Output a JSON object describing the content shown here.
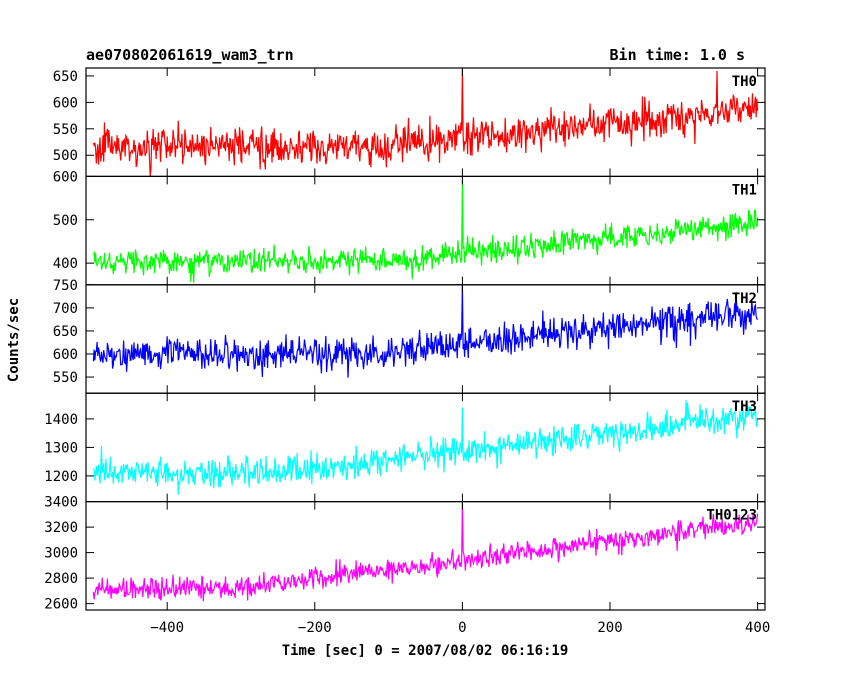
{
  "header": {
    "left_title": "ae070802061619_wam3_trn",
    "right_title": "Bin time: 1.0 s"
  },
  "axes": {
    "xlabel": "Time [sec] 0 = 2007/08/02 06:16:19",
    "ylabel": "Counts/sec"
  },
  "chart_data": {
    "type": "line",
    "xlim": [
      -510,
      410
    ],
    "xticks": [
      -400,
      -200,
      0,
      200,
      400
    ],
    "xtick_labels": [
      "−400",
      "−200",
      "0",
      "200",
      "400"
    ],
    "bin_time_s": 1.0,
    "grid": false,
    "panels": [
      {
        "label": "TH0",
        "color": "#ff0000",
        "ylim": [
          460,
          665
        ],
        "yticks": [
          500,
          550,
          600,
          650
        ],
        "yticklabels": [
          "500",
          "550",
          "600",
          "650"
        ],
        "baseline_start": 515,
        "baseline_end": 590,
        "rise_start": -120,
        "noise": 30,
        "spike_x": 0,
        "spike_value": 665
      },
      {
        "label": "TH1",
        "color": "#00ff00",
        "ylim": [
          350,
          600
        ],
        "yticks": [
          400,
          500,
          600
        ],
        "yticklabels": [
          "400",
          "500",
          "600"
        ],
        "baseline_start": 405,
        "baseline_end": 490,
        "rise_start": -100,
        "noise": 25,
        "spike_x": 0,
        "spike_value": 600
      },
      {
        "label": "TH2",
        "color": "#0000ff",
        "ylim": [
          515,
          750
        ],
        "yticks": [
          550,
          600,
          650,
          700,
          750
        ],
        "yticklabels": [
          "550",
          "600",
          "650",
          "700",
          "750"
        ],
        "baseline_start": 600,
        "baseline_end": 690,
        "rise_start": -120,
        "noise": 30,
        "spike_x": 0,
        "spike_value": 750
      },
      {
        "label": "TH3",
        "color": "#00ffff",
        "ylim": [
          1110,
          1490
        ],
        "yticks": [
          1200,
          1300,
          1400
        ],
        "yticklabels": [
          "1200",
          "1300",
          "1400"
        ],
        "baseline_start": 1210,
        "baseline_end": 1410,
        "rise_start": -250,
        "noise": 45,
        "spike_x": 0,
        "spike_value": 1440
      },
      {
        "label": "TH0123",
        "color": "#ff00ff",
        "ylim": [
          2550,
          3400
        ],
        "yticks": [
          2600,
          2800,
          3000,
          3200,
          3400
        ],
        "yticklabels": [
          "2600",
          "2800",
          "3000",
          "3200",
          "3400"
        ],
        "baseline_start": 2720,
        "baseline_end": 3240,
        "rise_start": -300,
        "noise": 75,
        "spike_x": 0,
        "spike_value": 3400
      }
    ]
  }
}
